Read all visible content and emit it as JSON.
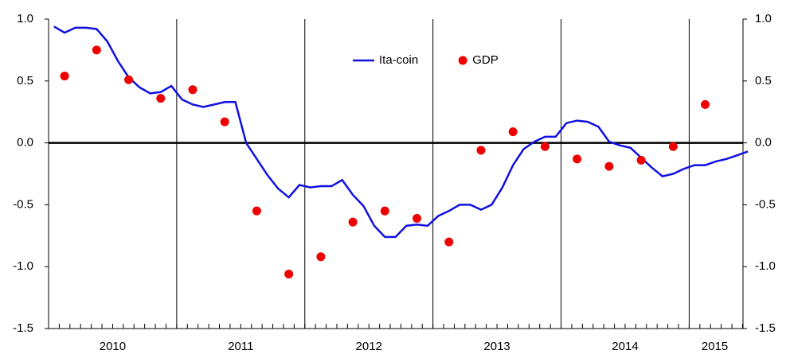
{
  "chart_data": {
    "type": "line",
    "x": [
      2010.042,
      2010.125,
      2010.208,
      2010.292,
      2010.375,
      2010.458,
      2010.542,
      2010.625,
      2010.708,
      2010.792,
      2010.875,
      2010.958,
      2011.042,
      2011.125,
      2011.208,
      2011.292,
      2011.375,
      2011.458,
      2011.542,
      2011.625,
      2011.708,
      2011.792,
      2011.875,
      2011.958,
      2012.042,
      2012.125,
      2012.208,
      2012.292,
      2012.375,
      2012.458,
      2012.542,
      2012.625,
      2012.708,
      2012.792,
      2012.875,
      2012.958,
      2013.042,
      2013.125,
      2013.208,
      2013.292,
      2013.375,
      2013.458,
      2013.542,
      2013.625,
      2013.708,
      2013.792,
      2013.875,
      2013.958,
      2014.042,
      2014.125,
      2014.208,
      2014.292,
      2014.375,
      2014.458,
      2014.542,
      2014.625,
      2014.708,
      2014.792,
      2014.875,
      2014.958,
      2015.042,
      2015.125,
      2015.208,
      2015.292,
      2015.375,
      2015.458
    ],
    "series": [
      {
        "name": "Ita-coin",
        "type": "line",
        "color": "#1010e0",
        "values": [
          0.94,
          0.89,
          0.93,
          0.93,
          0.92,
          0.82,
          0.66,
          0.53,
          0.45,
          0.4,
          0.41,
          0.46,
          0.35,
          0.31,
          0.29,
          0.31,
          0.33,
          0.33,
          0.0,
          -0.13,
          -0.26,
          -0.37,
          -0.44,
          -0.34,
          -0.36,
          -0.35,
          -0.35,
          -0.3,
          -0.42,
          -0.51,
          -0.67,
          -0.76,
          -0.76,
          -0.67,
          -0.66,
          -0.67,
          -0.59,
          -0.55,
          -0.5,
          -0.5,
          -0.54,
          -0.5,
          -0.36,
          -0.18,
          -0.05,
          0.01,
          0.05,
          0.05,
          0.16,
          0.18,
          0.17,
          0.13,
          0.01,
          -0.02,
          -0.04,
          -0.12,
          -0.2,
          -0.27,
          -0.25,
          -0.21,
          -0.18,
          -0.18,
          -0.15,
          -0.13,
          -0.1,
          -0.07
        ]
      },
      {
        "name": "GDP",
        "type": "scatter",
        "color": "#ee0000",
        "x": [
          2010.125,
          2010.375,
          2010.625,
          2010.875,
          2011.125,
          2011.375,
          2011.625,
          2011.875,
          2012.125,
          2012.375,
          2012.625,
          2012.875,
          2013.125,
          2013.375,
          2013.625,
          2013.875,
          2014.125,
          2014.375,
          2014.625,
          2014.875,
          2015.125
        ],
        "values": [
          0.54,
          0.75,
          0.51,
          0.36,
          0.43,
          0.17,
          -0.55,
          -1.06,
          -0.92,
          -0.64,
          -0.55,
          -0.61,
          -0.8,
          -0.06,
          0.09,
          -0.03,
          -0.13,
          -0.19,
          -0.14,
          -0.03,
          0.31
        ]
      }
    ],
    "xlim": [
      2010,
      2015.42
    ],
    "xticks": [
      {
        "value": 2010.5,
        "label": "2010"
      },
      {
        "value": 2011.5,
        "label": "2011"
      },
      {
        "value": 2012.5,
        "label": "2012"
      },
      {
        "value": 2013.5,
        "label": "2013"
      },
      {
        "value": 2014.5,
        "label": "2014"
      },
      {
        "value": 2015.2,
        "label": "2015"
      }
    ],
    "ylim": [
      -1.5,
      1.0
    ],
    "yticks": [
      {
        "value": -1.5,
        "label": "-1.5"
      },
      {
        "value": -1.0,
        "label": "-1.0"
      },
      {
        "value": -0.5,
        "label": "-0.5"
      },
      {
        "value": 0,
        "label": "0.0"
      },
      {
        "value": 0.5,
        "label": "0.5"
      },
      {
        "value": 1.0,
        "label": "1.0"
      }
    ],
    "legend": "top"
  }
}
